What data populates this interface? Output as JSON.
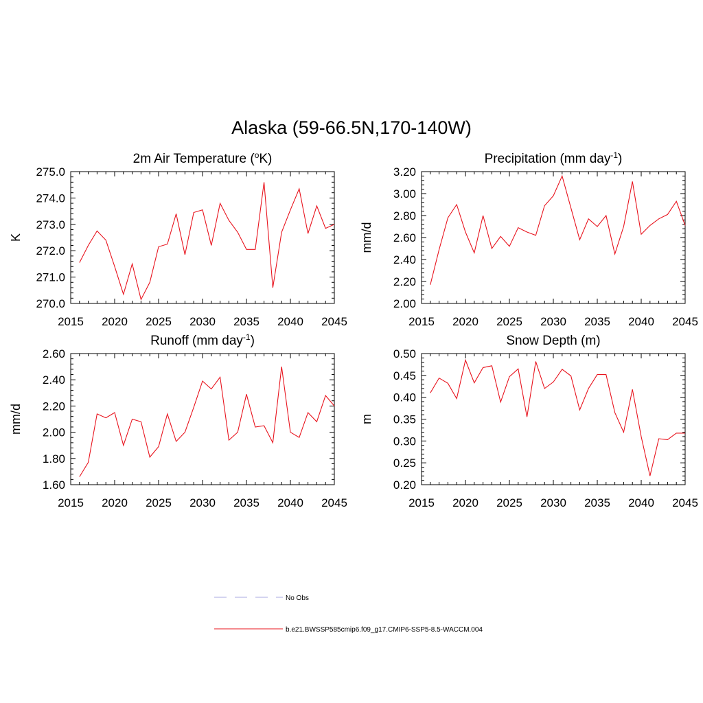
{
  "title": "Alaska (59-66.5N,170-140W)",
  "colors": {
    "series": "#e8141e",
    "no_obs": "#a9a9e0",
    "axis": "#000000"
  },
  "legend": [
    {
      "label": "No Obs",
      "style": "dashed",
      "color": "#a9a9e0"
    },
    {
      "label": "b.e21.BWSSP585cmip6.f09_g17.CMIP6-SSP5-8.5-WACCM.004",
      "style": "solid",
      "color": "#e8141e"
    }
  ],
  "chart_data": [
    {
      "type": "line",
      "title": "2m Air Temperature (",
      "title_sup": "o",
      "title_end": "K)",
      "ylabel": "K",
      "xlim": [
        2015,
        2045
      ],
      "ylim": [
        270.0,
        275.0
      ],
      "xticks": [
        2015,
        2020,
        2025,
        2030,
        2035,
        2040,
        2045
      ],
      "yticks": [
        270.0,
        271.0,
        272.0,
        273.0,
        274.0,
        275.0
      ],
      "ytick_labels": [
        "270.0",
        "271.0",
        "272.0",
        "273.0",
        "274.0",
        "275.0"
      ],
      "x": [
        2016,
        2017,
        2018,
        2019,
        2020,
        2021,
        2022,
        2023,
        2024,
        2025,
        2026,
        2027,
        2028,
        2029,
        2030,
        2031,
        2032,
        2033,
        2034,
        2035,
        2036,
        2037,
        2038,
        2039,
        2040,
        2041,
        2042,
        2043,
        2044,
        2045
      ],
      "y": [
        271.55,
        272.2,
        272.75,
        272.4,
        271.4,
        270.35,
        271.5,
        270.15,
        270.8,
        272.15,
        272.25,
        273.4,
        271.85,
        273.45,
        273.55,
        272.2,
        273.8,
        273.15,
        272.7,
        272.05,
        272.05,
        274.6,
        270.6,
        272.7,
        273.55,
        274.35,
        272.65,
        273.7,
        272.85,
        273.0
      ]
    },
    {
      "type": "line",
      "title": "Precipitation (mm day",
      "title_sup": "-1",
      "title_end": ")",
      "ylabel": "mm/d",
      "xlim": [
        2015,
        2045
      ],
      "ylim": [
        2.0,
        3.2
      ],
      "xticks": [
        2015,
        2020,
        2025,
        2030,
        2035,
        2040,
        2045
      ],
      "yticks": [
        2.0,
        2.2,
        2.4,
        2.6,
        2.8,
        3.0,
        3.2
      ],
      "ytick_labels": [
        "2.00",
        "2.20",
        "2.40",
        "2.60",
        "2.80",
        "3.00",
        "3.20"
      ],
      "x": [
        2016,
        2017,
        2018,
        2019,
        2020,
        2021,
        2022,
        2023,
        2024,
        2025,
        2026,
        2027,
        2028,
        2029,
        2030,
        2031,
        2032,
        2033,
        2034,
        2035,
        2036,
        2037,
        2038,
        2039,
        2040,
        2041,
        2042,
        2043,
        2044,
        2045
      ],
      "y": [
        2.17,
        2.49,
        2.78,
        2.9,
        2.65,
        2.46,
        2.8,
        2.5,
        2.61,
        2.52,
        2.69,
        2.65,
        2.62,
        2.89,
        2.98,
        3.16,
        2.87,
        2.58,
        2.77,
        2.7,
        2.8,
        2.45,
        2.7,
        3.11,
        2.63,
        2.71,
        2.77,
        2.81,
        2.93,
        2.71
      ]
    },
    {
      "type": "line",
      "title": "Runoff (mm day",
      "title_sup": "-1",
      "title_end": ")",
      "ylabel": "mm/d",
      "xlim": [
        2015,
        2045
      ],
      "ylim": [
        1.6,
        2.6
      ],
      "xticks": [
        2015,
        2020,
        2025,
        2030,
        2035,
        2040,
        2045
      ],
      "yticks": [
        1.6,
        1.8,
        2.0,
        2.2,
        2.4,
        2.6
      ],
      "ytick_labels": [
        "1.60",
        "1.80",
        "2.00",
        "2.20",
        "2.40",
        "2.60"
      ],
      "x": [
        2016,
        2017,
        2018,
        2019,
        2020,
        2021,
        2022,
        2023,
        2024,
        2025,
        2026,
        2027,
        2028,
        2029,
        2030,
        2031,
        2032,
        2033,
        2034,
        2035,
        2036,
        2037,
        2038,
        2039,
        2040,
        2041,
        2042,
        2043,
        2044,
        2045
      ],
      "y": [
        1.66,
        1.77,
        2.14,
        2.11,
        2.15,
        1.9,
        2.1,
        2.08,
        1.81,
        1.89,
        2.14,
        1.93,
        2.0,
        2.19,
        2.39,
        2.33,
        2.42,
        1.94,
        2.0,
        2.29,
        2.04,
        2.05,
        1.92,
        2.5,
        2.0,
        1.96,
        2.15,
        2.08,
        2.28,
        2.2
      ]
    },
    {
      "type": "line",
      "title": "Snow Depth (m)",
      "title_sup": "",
      "title_end": "",
      "ylabel": "m",
      "xlim": [
        2015,
        2045
      ],
      "ylim": [
        0.2,
        0.5
      ],
      "xticks": [
        2015,
        2020,
        2025,
        2030,
        2035,
        2040,
        2045
      ],
      "yticks": [
        0.2,
        0.25,
        0.3,
        0.35,
        0.4,
        0.45,
        0.5
      ],
      "ytick_labels": [
        "0.20",
        "0.25",
        "0.30",
        "0.35",
        "0.40",
        "0.45",
        "0.50"
      ],
      "x": [
        2016,
        2017,
        2018,
        2019,
        2020,
        2021,
        2022,
        2023,
        2024,
        2025,
        2026,
        2027,
        2028,
        2029,
        2030,
        2031,
        2032,
        2033,
        2034,
        2035,
        2036,
        2037,
        2038,
        2039,
        2040,
        2041,
        2042,
        2043,
        2044,
        2045
      ],
      "y": [
        0.41,
        0.444,
        0.432,
        0.397,
        0.485,
        0.433,
        0.468,
        0.472,
        0.389,
        0.447,
        0.465,
        0.355,
        0.482,
        0.42,
        0.435,
        0.464,
        0.449,
        0.371,
        0.42,
        0.452,
        0.452,
        0.365,
        0.32,
        0.418,
        0.31,
        0.22,
        0.305,
        0.303,
        0.318,
        0.318
      ]
    }
  ]
}
